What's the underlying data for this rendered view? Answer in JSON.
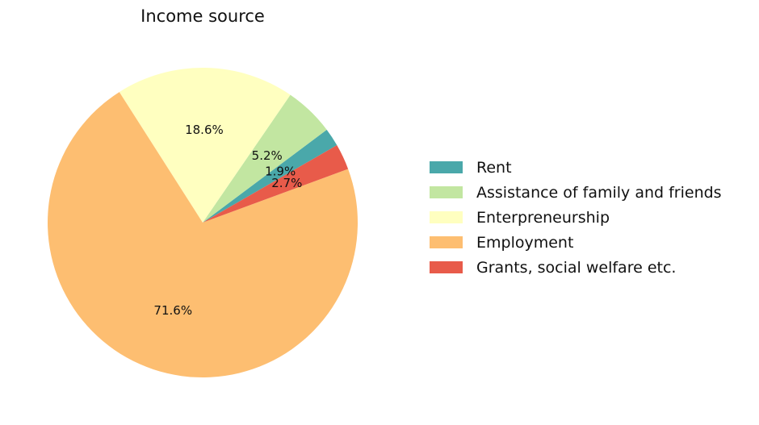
{
  "chart_data": {
    "type": "pie",
    "title": "Income source",
    "slices": [
      {
        "label": "Rent",
        "value": 1.9,
        "value_label": "1.9%",
        "color": "#4aa8aa"
      },
      {
        "label": "Assistance of family and friends",
        "value": 5.2,
        "value_label": "5.2%",
        "color": "#c2e6a1"
      },
      {
        "label": "Enterpreneurship",
        "value": 18.6,
        "value_label": "18.6%",
        "color": "#ffffc0"
      },
      {
        "label": "Employment",
        "value": 71.6,
        "value_label": "71.6%",
        "color": "#fdbe71"
      },
      {
        "label": "Grants, social welfare etc.",
        "value": 2.7,
        "value_label": "2.7%",
        "color": "#e85b4a"
      }
    ],
    "start_angle_deg": 30,
    "direction": "counterclockwise",
    "legend_position": "right"
  }
}
